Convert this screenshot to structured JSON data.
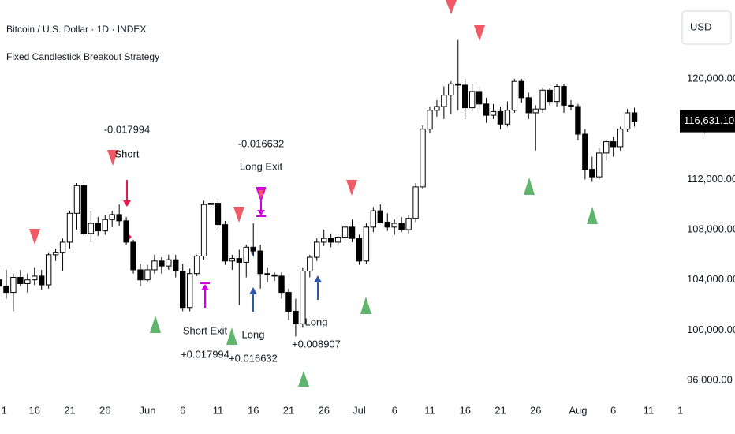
{
  "header": {
    "symbol": "Bitcoin / U.S. Dollar · 1D · INDEX",
    "strategy": "Fixed Candlestick Breakout Strategy",
    "currency": "USD"
  },
  "chart_data": {
    "type": "candlestick",
    "up_color": "#ffffff",
    "down_color": "#000000",
    "x": [
      0,
      1,
      2,
      3,
      4,
      5,
      6,
      7,
      8,
      9,
      10,
      11,
      12,
      13,
      14,
      15,
      16,
      17,
      18,
      19,
      20,
      21,
      22,
      23,
      24,
      25,
      26,
      27,
      28,
      29,
      30,
      31,
      32,
      33,
      34,
      35,
      36,
      37,
      38,
      39,
      40,
      41,
      42,
      43,
      44,
      45,
      46,
      47,
      48,
      49,
      50,
      51,
      52,
      53,
      54,
      55,
      56,
      57,
      58,
      59,
      60,
      61,
      62,
      63,
      64,
      65,
      66,
      67,
      68,
      69,
      70,
      71,
      72,
      73,
      74,
      75,
      76,
      77,
      78,
      79,
      80,
      81,
      82,
      83,
      84,
      85,
      86,
      87,
      88,
      89,
      90
    ],
    "ohlc": [
      [
        104000,
        104500,
        103000,
        103500
      ],
      [
        103500,
        104800,
        102500,
        103000
      ],
      [
        103000,
        104500,
        101500,
        104200
      ],
      [
        104200,
        104800,
        103500,
        103700
      ],
      [
        103700,
        104500,
        103000,
        104000
      ],
      [
        104000,
        105000,
        103600,
        104300
      ],
      [
        104300,
        104800,
        103200,
        103600
      ],
      [
        103600,
        106200,
        103300,
        106000
      ],
      [
        106000,
        106500,
        105500,
        106200
      ],
      [
        106200,
        107300,
        104700,
        107000
      ],
      [
        107000,
        109500,
        106500,
        109300
      ],
      [
        109300,
        111700,
        108000,
        111500
      ],
      [
        111500,
        111800,
        107500,
        107700
      ],
      [
        107700,
        109500,
        107000,
        108500
      ],
      [
        108500,
        109000,
        107500,
        107900
      ],
      [
        107900,
        109200,
        107600,
        108800
      ],
      [
        108800,
        109500,
        108200,
        109200
      ],
      [
        109200,
        110000,
        108300,
        108700
      ],
      [
        108700,
        109000,
        106800,
        107000
      ],
      [
        107000,
        107200,
        104500,
        104800
      ],
      [
        104800,
        105300,
        103500,
        104000
      ],
      [
        104000,
        105200,
        103800,
        104800
      ],
      [
        104800,
        106000,
        104500,
        105500
      ],
      [
        105500,
        105800,
        104500,
        105100
      ],
      [
        105100,
        106000,
        104800,
        105600
      ],
      [
        105600,
        106000,
        104200,
        104700
      ],
      [
        104700,
        105300,
        101500,
        101800
      ],
      [
        101800,
        104900,
        101500,
        104500
      ],
      [
        104500,
        106000,
        104300,
        105900
      ],
      [
        105900,
        110300,
        105600,
        110000
      ],
      [
        110000,
        110300,
        109200,
        110100
      ],
      [
        110100,
        110500,
        108000,
        108400
      ],
      [
        108400,
        108700,
        105200,
        105500
      ],
      [
        105500,
        106000,
        104800,
        105700
      ],
      [
        105700,
        106400,
        102000,
        105400
      ],
      [
        105400,
        106800,
        104200,
        106600
      ],
      [
        106600,
        108500,
        106000,
        106300
      ],
      [
        106300,
        106800,
        103300,
        104500
      ],
      [
        104500,
        105000,
        103800,
        104400
      ],
      [
        104400,
        104600,
        103900,
        104300
      ],
      [
        104300,
        104600,
        102500,
        103000
      ],
      [
        103000,
        103300,
        100800,
        101500
      ],
      [
        101500,
        102500,
        99500,
        100500
      ],
      [
        100500,
        105000,
        100200,
        104700
      ],
      [
        104700,
        106000,
        104200,
        105800
      ],
      [
        105800,
        107300,
        105500,
        107000
      ],
      [
        107000,
        108000,
        106700,
        107300
      ],
      [
        107300,
        107700,
        106600,
        107000
      ],
      [
        107000,
        107600,
        106800,
        107400
      ],
      [
        107400,
        108500,
        107100,
        108200
      ],
      [
        108200,
        108800,
        107000,
        107300
      ],
      [
        107300,
        107600,
        105200,
        105500
      ],
      [
        105500,
        108500,
        105300,
        108200
      ],
      [
        108200,
        109800,
        107800,
        109500
      ],
      [
        109500,
        110000,
        108500,
        108600
      ],
      [
        108600,
        109300,
        107900,
        108200
      ],
      [
        108200,
        108800,
        107600,
        108500
      ],
      [
        108500,
        109000,
        107800,
        108000
      ],
      [
        108000,
        109200,
        107700,
        108900
      ],
      [
        108900,
        111700,
        108600,
        111400
      ],
      [
        111400,
        116300,
        111200,
        116000
      ],
      [
        116000,
        117800,
        115700,
        117500
      ],
      [
        117500,
        118300,
        117000,
        117800
      ],
      [
        117800,
        119400,
        116800,
        118700
      ],
      [
        118700,
        119800,
        117200,
        119600
      ],
      [
        119600,
        123100,
        117500,
        119500
      ],
      [
        119500,
        120000,
        116800,
        117700
      ],
      [
        117700,
        119600,
        117400,
        119000
      ],
      [
        119000,
        119400,
        117600,
        118000
      ],
      [
        118000,
        118500,
        116500,
        117100
      ],
      [
        117100,
        118000,
        116800,
        117400
      ],
      [
        117400,
        117800,
        116000,
        116400
      ],
      [
        116400,
        118200,
        116200,
        117500
      ],
      [
        117500,
        120000,
        117300,
        119800
      ],
      [
        119800,
        120000,
        118100,
        118500
      ],
      [
        118500,
        118900,
        116800,
        117300
      ],
      [
        117300,
        117900,
        114300,
        117600
      ],
      [
        117600,
        119300,
        117300,
        119100
      ],
      [
        119100,
        119300,
        117900,
        118200
      ],
      [
        118200,
        119600,
        117800,
        119400
      ],
      [
        119400,
        119600,
        117300,
        117900
      ],
      [
        117900,
        118300,
        117500,
        117800
      ],
      [
        117800,
        118000,
        115100,
        115600
      ],
      [
        115600,
        116000,
        112000,
        112800
      ],
      [
        112800,
        113800,
        111800,
        112200
      ],
      [
        112200,
        114500,
        112000,
        114100
      ],
      [
        114100,
        115200,
        113500,
        115000
      ],
      [
        115000,
        115400,
        113800,
        114600
      ],
      [
        114600,
        116200,
        114300,
        116000
      ],
      [
        116000,
        117600,
        115800,
        117300
      ],
      [
        117300,
        117700,
        116200,
        116631.1
      ]
    ],
    "xlim": [
      0,
      96.5
    ],
    "xticks": [
      {
        "value": 0.7,
        "label": "1"
      },
      {
        "value": 5,
        "label": "16"
      },
      {
        "value": 10,
        "label": "21"
      },
      {
        "value": 15,
        "label": "26"
      },
      {
        "value": 21,
        "label": "Jun"
      },
      {
        "value": 26,
        "label": "6"
      },
      {
        "value": 31,
        "label": "11"
      },
      {
        "value": 36,
        "label": "16"
      },
      {
        "value": 41,
        "label": "21"
      },
      {
        "value": 46,
        "label": "26"
      },
      {
        "value": 51,
        "label": "Jul"
      },
      {
        "value": 56,
        "label": "6"
      },
      {
        "value": 61,
        "label": "11"
      },
      {
        "value": 66,
        "label": "16"
      },
      {
        "value": 71,
        "label": "21"
      },
      {
        "value": 76,
        "label": "26"
      },
      {
        "value": 82,
        "label": "Aug"
      },
      {
        "value": 87,
        "label": "6"
      },
      {
        "value": 92,
        "label": "11"
      },
      {
        "value": 96.5,
        "label": "1"
      }
    ],
    "ylim": [
      95500,
      126280
    ],
    "yticks": [
      {
        "value": 96000,
        "label": "96,000.00"
      },
      {
        "value": 100000,
        "label": "100,000.00"
      },
      {
        "value": 104000,
        "label": "104,000.00"
      },
      {
        "value": 108000,
        "label": "108,000.00"
      },
      {
        "value": 112000,
        "label": "112,000.00"
      },
      {
        "value": 116000,
        "label": "116,000.00"
      },
      {
        "value": 120000,
        "label": "120,000.00"
      }
    ],
    "last_price": {
      "value": 116631.1,
      "label": "116,631.10"
    },
    "annotations": [
      {
        "lines": [
          "-0.017994",
          "Short"
        ]
      },
      {
        "lines": [
          "-0.016632",
          "Long Exit"
        ]
      },
      {
        "lines": [
          "Short Exit",
          "+0.017994"
        ]
      },
      {
        "lines": [
          "Long",
          "+0.016632"
        ]
      },
      {
        "lines": [
          "Long",
          "+0.008907"
        ]
      }
    ]
  }
}
